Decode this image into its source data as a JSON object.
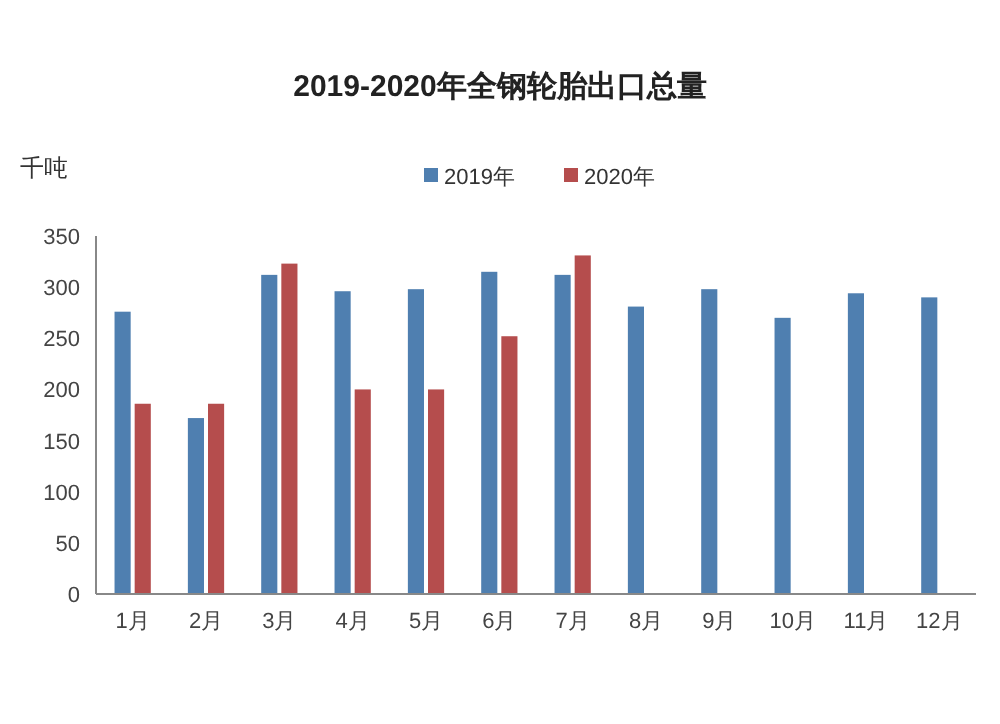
{
  "chart_data": {
    "type": "bar",
    "title": "2019-2020年全钢轮胎出口总量",
    "ylabel": "千吨",
    "categories": [
      "1月",
      "2月",
      "3月",
      "4月",
      "5月",
      "6月",
      "7月",
      "8月",
      "9月",
      "10月",
      "11月",
      "12月"
    ],
    "series": [
      {
        "name": "2019年",
        "color": "#4f7fb0",
        "values": [
          276,
          172,
          312,
          296,
          298,
          315,
          312,
          281,
          298,
          270,
          294,
          290
        ]
      },
      {
        "name": "2020年",
        "color": "#b54d4d",
        "values": [
          186,
          186,
          323,
          200,
          200,
          252,
          331,
          null,
          null,
          null,
          null,
          null
        ]
      }
    ],
    "ylim": [
      0,
      350
    ],
    "yticks": [
      0,
      50,
      100,
      150,
      200,
      250,
      300,
      350
    ],
    "legend": "top"
  }
}
